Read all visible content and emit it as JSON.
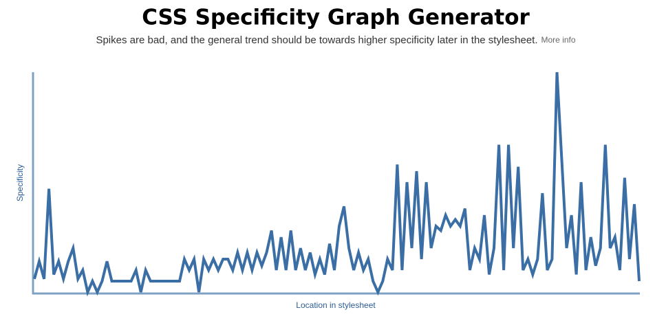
{
  "chart_data": {
    "type": "line",
    "title": "CSS Specificity Graph Generator",
    "subtitle": "Spikes are bad, and the general trend should be towards higher specificity later in the stylesheet.",
    "link": "More info",
    "x_label": "Location in stylesheet",
    "y_label": "Specificity",
    "color": "#3a6ea5",
    "ylim": [
      0,
      100
    ],
    "values": [
      6,
      14,
      6,
      47,
      8,
      14,
      6,
      14,
      20,
      6,
      10,
      0,
      5,
      0,
      5,
      14,
      5,
      5,
      5,
      5,
      5,
      10,
      0,
      10,
      5,
      5,
      5,
      5,
      5,
      5,
      5,
      15,
      10,
      15,
      0,
      15,
      10,
      15,
      10,
      15,
      15,
      10,
      18,
      10,
      18,
      10,
      18,
      12,
      18,
      28,
      10,
      25,
      10,
      28,
      10,
      20,
      10,
      18,
      8,
      15,
      8,
      22,
      10,
      30,
      39,
      20,
      10,
      18,
      10,
      15,
      5,
      0,
      5,
      15,
      10,
      58,
      10,
      50,
      20,
      55,
      15,
      50,
      20,
      30,
      28,
      35,
      30,
      33,
      30,
      38,
      10,
      20,
      15,
      35,
      8,
      20,
      67,
      10,
      67,
      20,
      57,
      10,
      15,
      8,
      15,
      45,
      10,
      15,
      100,
      60,
      20,
      35,
      8,
      50,
      10,
      25,
      12,
      20,
      67,
      20,
      25,
      10,
      52,
      15,
      40,
      5
    ]
  }
}
